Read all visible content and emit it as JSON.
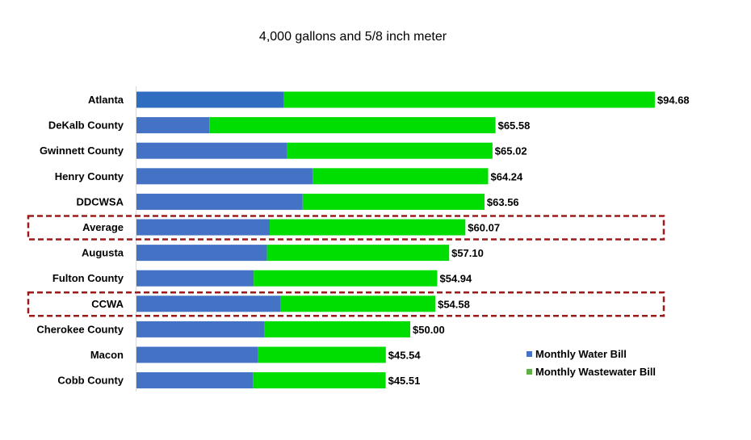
{
  "chart_data": {
    "type": "bar",
    "orientation": "horizontal",
    "stacked": true,
    "title": "4,000 gallons and 5/8 inch meter",
    "categories": [
      "Atlanta",
      "DeKalb County",
      "Gwinnett County",
      "Henry County",
      "DDCWSA",
      "Average",
      "Augusta",
      "Fulton County",
      "CCWA",
      "Cherokee County",
      "Macon",
      "Cobb County"
    ],
    "series": [
      {
        "name": "Monthly Water Bill",
        "color": "#4472C4",
        "values": [
          26.91,
          13.29,
          27.53,
          32.17,
          30.35,
          24.33,
          23.83,
          21.42,
          26.36,
          23.37,
          22.22,
          21.25
        ]
      },
      {
        "name": "Monthly Wastewater Bill",
        "color": "#00DD00",
        "values": [
          67.77,
          52.29,
          37.49,
          32.07,
          33.21,
          35.74,
          33.27,
          33.52,
          28.22,
          26.63,
          23.32,
          24.26
        ]
      }
    ],
    "totals_labels": [
      "$94.68",
      "$65.58",
      "$65.02",
      "$64.24",
      "$63.56",
      "$60.07",
      "$57.10",
      "$54.94",
      "$54.58",
      "$50.00",
      "$45.54",
      "$45.51"
    ],
    "highlighted_categories": [
      "Average",
      "CCWA"
    ],
    "highlight_color": "#9B1B1B",
    "first_bar_water_color": "#2E6DBF",
    "legend_position": "bottom-right",
    "xlim": [
      0,
      95
    ],
    "grid": false
  }
}
